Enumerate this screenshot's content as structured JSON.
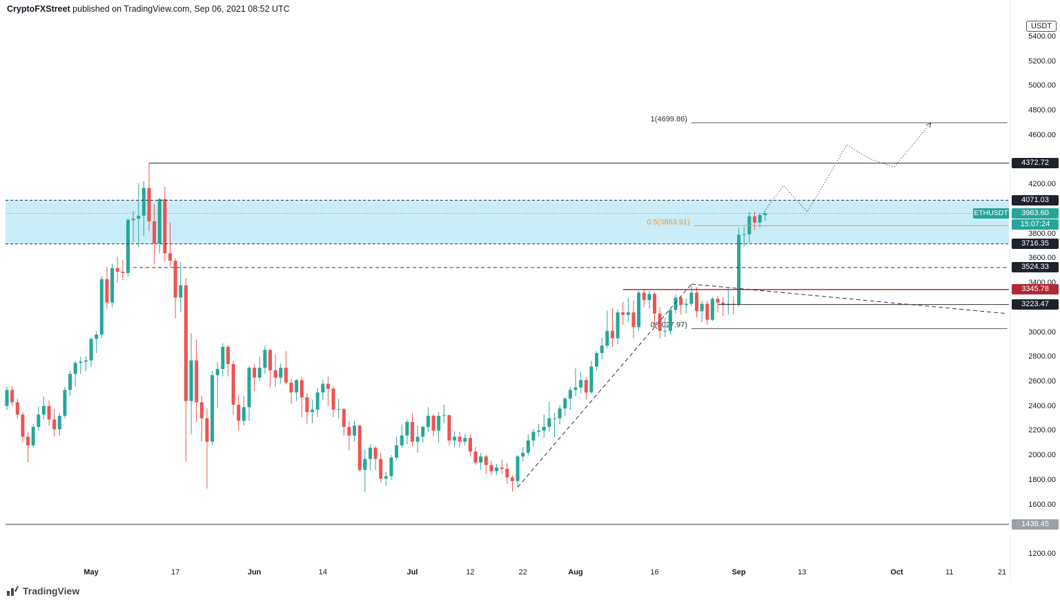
{
  "header": {
    "brand": "CryptoFXStreet",
    "rest": "published on TradingView.com, Sep 06, 2021 08:52 UTC"
  },
  "footer": {
    "brand": "TradingView"
  },
  "price_axis": {
    "unit": "USDT",
    "max": 5400,
    "min": 1200,
    "step": 200
  },
  "time_axis": {
    "ticks": [
      {
        "label": "May",
        "day": 16,
        "major": true
      },
      {
        "label": "17",
        "day": 32,
        "major": false
      },
      {
        "label": "Jun",
        "day": 47,
        "major": true
      },
      {
        "label": "14",
        "day": 60,
        "major": false
      },
      {
        "label": "Jul",
        "day": 77,
        "major": true
      },
      {
        "label": "12",
        "day": 88,
        "major": false
      },
      {
        "label": "22",
        "day": 98,
        "major": false
      },
      {
        "label": "Aug",
        "day": 108,
        "major": true
      },
      {
        "label": "16",
        "day": 123,
        "major": false
      },
      {
        "label": "Sep",
        "day": 139,
        "major": true
      },
      {
        "label": "13",
        "day": 151,
        "major": false
      },
      {
        "label": "Oct",
        "day": 169,
        "major": true
      },
      {
        "label": "11",
        "day": 179,
        "major": false
      },
      {
        "label": "21",
        "day": 189,
        "major": false
      }
    ]
  },
  "chart_data": {
    "type": "candlestick",
    "symbol": "ETHUSDT",
    "interval": "1D",
    "start_date": "2021-04-15",
    "current_price": 3963.6,
    "countdown": "15:07:24",
    "colors": {
      "up": "#26a69a",
      "down": "#ef5350"
    },
    "visible_price_range": [
      1150,
      5480
    ],
    "candles": [
      [
        2400,
        2555,
        2370,
        2530
      ],
      [
        2530,
        2560,
        2400,
        2430
      ],
      [
        2430,
        2460,
        2300,
        2330
      ],
      [
        2330,
        2350,
        2105,
        2150
      ],
      [
        2150,
        2185,
        1945,
        2080
      ],
      [
        2080,
        2255,
        2060,
        2230
      ],
      [
        2230,
        2395,
        2200,
        2330
      ],
      [
        2330,
        2475,
        2290,
        2400
      ],
      [
        2400,
        2445,
        2240,
        2290
      ],
      [
        2290,
        2375,
        2150,
        2210
      ],
      [
        2210,
        2345,
        2160,
        2320
      ],
      [
        2320,
        2555,
        2300,
        2530
      ],
      [
        2530,
        2685,
        2480,
        2660
      ],
      [
        2660,
        2765,
        2560,
        2750
      ],
      [
        2750,
        2800,
        2660,
        2760
      ],
      [
        2760,
        2805,
        2680,
        2770
      ],
      [
        2770,
        2955,
        2720,
        2945
      ],
      [
        2945,
        3005,
        2830,
        2980
      ],
      [
        2980,
        3455,
        2950,
        3430
      ],
      [
        3430,
        3530,
        3190,
        3240
      ],
      [
        3240,
        3555,
        3200,
        3520
      ],
      [
        3520,
        3610,
        3400,
        3490
      ],
      [
        3490,
        3585,
        3420,
        3480
      ],
      [
        3480,
        3925,
        3450,
        3910
      ],
      [
        3910,
        3985,
        3730,
        3920
      ],
      [
        3920,
        4210,
        3690,
        3945
      ],
      [
        3945,
        4225,
        3780,
        4170
      ],
      [
        4170,
        4373,
        3820,
        3900
      ],
      [
        3900,
        4035,
        3550,
        3720
      ],
      [
        3720,
        4090,
        3640,
        4080
      ],
      [
        4080,
        4180,
        3570,
        3640
      ],
      [
        3640,
        3890,
        3530,
        3580
      ],
      [
        3580,
        3600,
        3110,
        3280
      ],
      [
        3280,
        3570,
        3160,
        3380
      ],
      [
        3380,
        3440,
        1950,
        2440
      ],
      [
        2440,
        2990,
        2170,
        2770
      ],
      [
        2770,
        2940,
        2270,
        2430
      ],
      [
        2430,
        2480,
        2110,
        2300
      ],
      [
        2300,
        2380,
        1730,
        2110
      ],
      [
        2110,
        2685,
        2080,
        2650
      ],
      [
        2650,
        2755,
        2380,
        2700
      ],
      [
        2700,
        2910,
        2640,
        2880
      ],
      [
        2880,
        2895,
        2640,
        2740
      ],
      [
        2740,
        2765,
        2330,
        2410
      ],
      [
        2410,
        2490,
        2200,
        2280
      ],
      [
        2280,
        2480,
        2240,
        2390
      ],
      [
        2390,
        2725,
        2280,
        2710
      ],
      [
        2710,
        2740,
        2520,
        2630
      ],
      [
        2630,
        2800,
        2600,
        2710
      ],
      [
        2710,
        2890,
        2660,
        2855
      ],
      [
        2855,
        2860,
        2550,
        2690
      ],
      [
        2690,
        2820,
        2555,
        2630
      ],
      [
        2630,
        2745,
        2580,
        2710
      ],
      [
        2710,
        2845,
        2575,
        2590
      ],
      [
        2590,
        2620,
        2420,
        2510
      ],
      [
        2510,
        2620,
        2440,
        2610
      ],
      [
        2610,
        2635,
        2310,
        2470
      ],
      [
        2470,
        2505,
        2255,
        2350
      ],
      [
        2350,
        2450,
        2260,
        2370
      ],
      [
        2370,
        2545,
        2310,
        2510
      ],
      [
        2510,
        2615,
        2450,
        2580
      ],
      [
        2580,
        2640,
        2400,
        2540
      ],
      [
        2540,
        2560,
        2310,
        2370
      ],
      [
        2370,
        2460,
        2300,
        2375
      ],
      [
        2375,
        2385,
        2160,
        2230
      ],
      [
        2230,
        2280,
        2040,
        2160
      ],
      [
        2160,
        2280,
        2110,
        2240
      ],
      [
        2240,
        2250,
        1865,
        1880
      ],
      [
        1880,
        2045,
        1700,
        1970
      ],
      [
        1970,
        2090,
        1880,
        2060
      ],
      [
        2060,
        2075,
        1880,
        1970
      ],
      [
        1970,
        2020,
        1780,
        1810
      ],
      [
        1810,
        1865,
        1750,
        1830
      ],
      [
        1830,
        2000,
        1800,
        1980
      ],
      [
        1980,
        2150,
        1960,
        2080
      ],
      [
        2080,
        2250,
        2060,
        2160
      ],
      [
        2160,
        2290,
        2090,
        2270
      ],
      [
        2270,
        2340,
        2070,
        2110
      ],
      [
        2110,
        2240,
        2020,
        2150
      ],
      [
        2150,
        2240,
        2100,
        2230
      ],
      [
        2230,
        2390,
        2190,
        2320
      ],
      [
        2320,
        2335,
        2150,
        2200
      ],
      [
        2200,
        2350,
        2100,
        2320
      ],
      [
        2320,
        2410,
        2260,
        2325
      ],
      [
        2325,
        2330,
        2080,
        2120
      ],
      [
        2120,
        2195,
        2060,
        2150
      ],
      [
        2150,
        2190,
        2060,
        2110
      ],
      [
        2110,
        2175,
        2080,
        2140
      ],
      [
        2140,
        2170,
        1990,
        2030
      ],
      [
        2030,
        2070,
        1920,
        1940
      ],
      [
        1940,
        2020,
        1880,
        1990
      ],
      [
        1990,
        2005,
        1850,
        1920
      ],
      [
        1920,
        1955,
        1840,
        1870
      ],
      [
        1870,
        1930,
        1840,
        1900
      ],
      [
        1900,
        1965,
        1850,
        1890
      ],
      [
        1890,
        1935,
        1770,
        1820
      ],
      [
        1820,
        1835,
        1706,
        1790
      ],
      [
        1790,
        2000,
        1740,
        1990
      ],
      [
        1990,
        2065,
        1950,
        2020
      ],
      [
        2020,
        2170,
        2000,
        2120
      ],
      [
        2120,
        2215,
        2070,
        2190
      ],
      [
        2190,
        2255,
        2150,
        2200
      ],
      [
        2200,
        2330,
        2140,
        2230
      ],
      [
        2230,
        2435,
        2190,
        2300
      ],
      [
        2300,
        2345,
        2150,
        2300
      ],
      [
        2300,
        2405,
        2250,
        2380
      ],
      [
        2380,
        2475,
        2320,
        2460
      ],
      [
        2460,
        2555,
        2370,
        2530
      ],
      [
        2530,
        2705,
        2480,
        2550
      ],
      [
        2550,
        2675,
        2500,
        2610
      ],
      [
        2610,
        2635,
        2450,
        2510
      ],
      [
        2510,
        2765,
        2500,
        2720
      ],
      [
        2720,
        2845,
        2690,
        2830
      ],
      [
        2830,
        2955,
        2780,
        2890
      ],
      [
        2890,
        3175,
        2870,
        3010
      ],
      [
        3010,
        3195,
        2880,
        2950
      ],
      [
        2950,
        3185,
        2900,
        3160
      ],
      [
        3160,
        3245,
        3060,
        3140
      ],
      [
        3140,
        3275,
        3080,
        3160
      ],
      [
        3160,
        3255,
        2950,
        3040
      ],
      [
        3040,
        3335,
        3010,
        3320
      ],
      [
        3320,
        3345,
        3200,
        3260
      ],
      [
        3260,
        3335,
        3190,
        3310
      ],
      [
        3310,
        3325,
        3060,
        3150
      ],
      [
        3150,
        3205,
        2950,
        3010
      ],
      [
        3010,
        3115,
        2960,
        3010
      ],
      [
        3010,
        3195,
        2980,
        3180
      ],
      [
        3180,
        3305,
        3150,
        3280
      ],
      [
        3280,
        3295,
        3140,
        3220
      ],
      [
        3220,
        3275,
        3150,
        3230
      ],
      [
        3230,
        3385,
        3210,
        3320
      ],
      [
        3320,
        3365,
        3120,
        3170
      ],
      [
        3170,
        3255,
        3080,
        3230
      ],
      [
        3230,
        3255,
        3060,
        3100
      ],
      [
        3100,
        3285,
        3090,
        3270
      ],
      [
        3270,
        3295,
        3160,
        3240
      ],
      [
        3240,
        3285,
        3130,
        3220
      ],
      [
        3220,
        3355,
        3140,
        3230
      ],
      [
        3230,
        3290,
        3145,
        3225
      ],
      [
        3225,
        3845,
        3205,
        3790
      ],
      [
        3790,
        3855,
        3695,
        3795
      ],
      [
        3795,
        3975,
        3725,
        3940
      ],
      [
        3940,
        3975,
        3830,
        3890
      ],
      [
        3890,
        3970,
        3850,
        3950
      ],
      [
        3950,
        3978,
        3900,
        3964
      ]
    ],
    "supply_zone": {
      "top": 4071.03,
      "bottom": 3716.35,
      "fill": "#c9edf6",
      "border": "#2a2e39"
    },
    "levels": [
      {
        "price": 4372.72,
        "color": "#2a2e39",
        "width": 1,
        "dash": "",
        "from_day": 27,
        "to_day": null
      },
      {
        "price": 3524.33,
        "color": "#2a2e39",
        "width": 1,
        "dash": "5,4",
        "from_day": 24,
        "to_day": null
      },
      {
        "price": 3345.78,
        "color": "#b22833",
        "width": 1.5,
        "dash": "",
        "from_day": 117,
        "to_day": null
      },
      {
        "price": 3223.47,
        "color": "#2a2e39",
        "width": 1,
        "dash": "",
        "from_day": 135,
        "to_day": null
      },
      {
        "price": 1438.45,
        "color": "#9598a1",
        "width": 2,
        "dash": "",
        "from_day": null,
        "to_day": null
      }
    ],
    "fib_retracement": {
      "low": 3027.97,
      "high": 4699.86,
      "levels": [
        {
          "label": "1(4699.86)",
          "price": 4699.86,
          "line_color": "#50535e",
          "text_color": "#2a2e39",
          "from_day": 130,
          "to_day": 190
        },
        {
          "label": "0.5(3863.91)",
          "price": 3863.91,
          "line_color": "#f09342",
          "text_color": "#f09342",
          "from_day": 130.5,
          "to_day": 190
        },
        {
          "label": "0(3027.97)",
          "price": 3027.97,
          "line_color": "#50535e",
          "text_color": "#2a2e39",
          "from_day": 130,
          "to_day": 190
        }
      ]
    },
    "trendlines": [
      {
        "from": {
          "day": 97,
          "price": 1740
        },
        "to": {
          "day": 130,
          "price": 3390
        }
      },
      {
        "from": {
          "day": 130,
          "price": 3390
        },
        "to": {
          "day": 190,
          "price": 3150
        }
      }
    ],
    "projection": {
      "points": [
        {
          "day": 143.5,
          "price": 3960
        },
        {
          "day": 147.5,
          "price": 4190
        },
        {
          "day": 152,
          "price": 3975
        },
        {
          "day": 159.5,
          "price": 4520
        },
        {
          "day": 164,
          "price": 4405
        },
        {
          "day": 168.5,
          "price": 4340
        },
        {
          "day": 175.5,
          "price": 4700
        }
      ]
    },
    "price_labels": [
      {
        "text": "4372.72",
        "value": 4372.72,
        "bg": "#1e222d"
      },
      {
        "text": "4071.03",
        "value": 4071.03,
        "bg": "#1e222d"
      },
      {
        "text": "3963.60",
        "value": 3963.6,
        "bg": "#26a69a",
        "is_current": true
      },
      {
        "text": "15:07:24",
        "value": 3963.6,
        "bg": "#26a69a",
        "countdown": true
      },
      {
        "text": "3716.35",
        "value": 3716.35,
        "bg": "#1e222d"
      },
      {
        "text": "3524.33",
        "value": 3524.33,
        "bg": "#1e222d"
      },
      {
        "text": "3345.78",
        "value": 3345.78,
        "bg": "#b22833"
      },
      {
        "text": "3223.47",
        "value": 3223.47,
        "bg": "#1e222d"
      },
      {
        "text": "1438.45",
        "value": 1438.45,
        "bg": "#9ca0aa"
      }
    ]
  }
}
